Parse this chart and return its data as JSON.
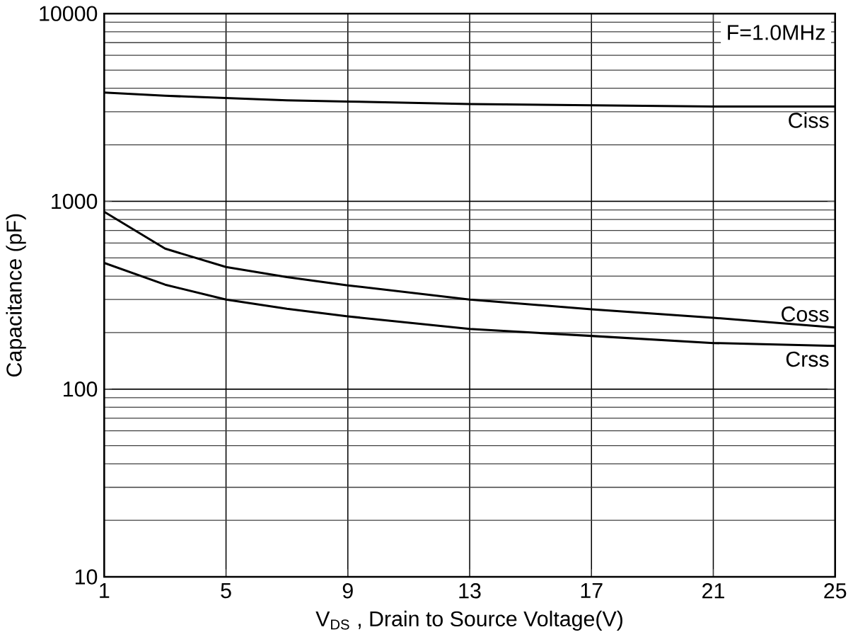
{
  "chart_data": {
    "type": "line",
    "xlabel": "V$_{DS}$ , Drain to Source Voltage(V)",
    "ylabel": "Capacitance (pF)",
    "annotations": [
      "F=1.0MHz"
    ],
    "x": [
      1,
      3,
      5,
      7,
      9,
      13,
      17,
      21,
      25
    ],
    "series": [
      {
        "name": "Ciss",
        "color": "#000000",
        "values": [
          3800,
          3650,
          3550,
          3450,
          3400,
          3300,
          3250,
          3200,
          3200
        ]
      },
      {
        "name": "Coss",
        "color": "#000000",
        "values": [
          880,
          560,
          447,
          395,
          357,
          300,
          266,
          240,
          213
        ]
      },
      {
        "name": "Crss",
        "color": "#000000",
        "values": [
          470,
          360,
          300,
          268,
          244,
          209,
          192,
          176,
          170
        ]
      }
    ],
    "log": "y",
    "grid": true,
    "legend": false,
    "xlim": [
      1,
      25
    ],
    "xticks": [
      1,
      5,
      9,
      13,
      17,
      21,
      25
    ],
    "ylim": [
      10,
      10000
    ],
    "yticks": [
      10,
      100,
      1000,
      10000
    ]
  }
}
